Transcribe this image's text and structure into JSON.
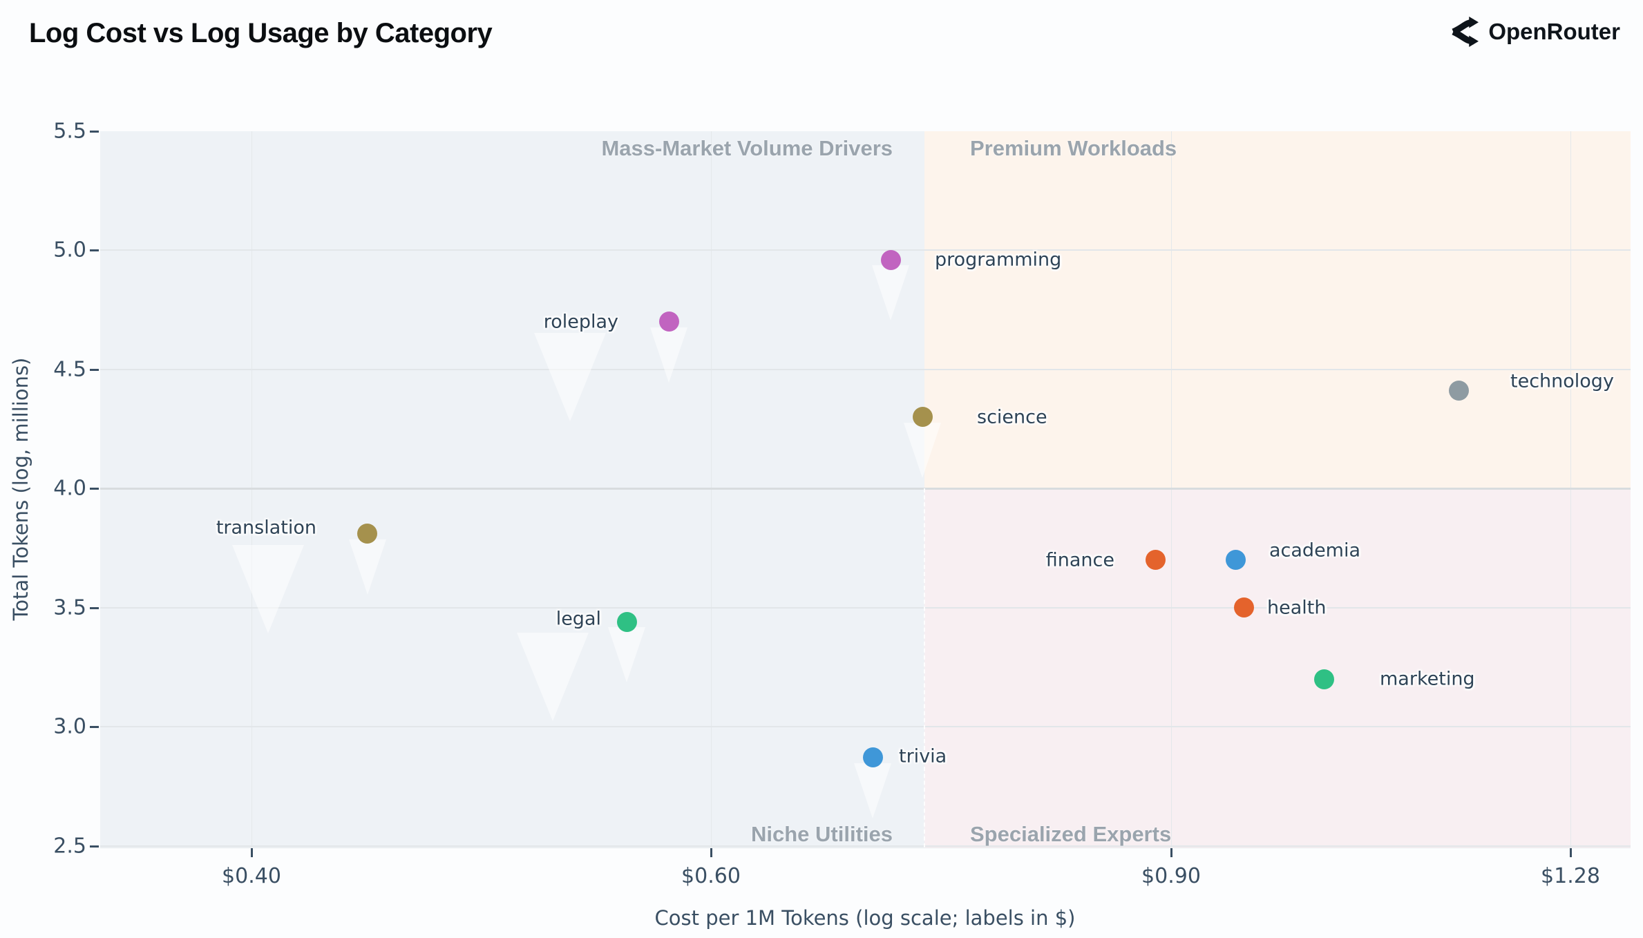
{
  "header": {
    "title": "Log Cost vs Log Usage by Category",
    "brand": "OpenRouter"
  },
  "chart_data": {
    "type": "scatter",
    "title": "Log Cost vs Log Usage by Category",
    "xlabel": "Cost per 1M Tokens (log scale; labels in $)",
    "ylabel": "Total Tokens (log, millions)",
    "x_scale": "log",
    "y_scale": "linear",
    "grid": true,
    "x_range": [
      0.35,
      1.35
    ],
    "y_range": [
      2.493,
      5.5
    ],
    "x_ticks": [
      {
        "label": "$0.40",
        "value": 0.4
      },
      {
        "label": "$0.60",
        "value": 0.6
      },
      {
        "label": "$0.90",
        "value": 0.9
      },
      {
        "label": "$1.28",
        "value": 1.28
      }
    ],
    "y_ticks": [
      {
        "label": "5.5",
        "value": 5.5
      },
      {
        "label": "5.0",
        "value": 5.0
      },
      {
        "label": "4.5",
        "value": 4.5
      },
      {
        "label": "4.0",
        "value": 4.0
      },
      {
        "label": "3.5",
        "value": 3.5
      },
      {
        "label": "3.0",
        "value": 3.0
      },
      {
        "label": "2.5",
        "value": 2.5
      }
    ],
    "quadrants": {
      "x_split": 0.724,
      "y_split": 4.0,
      "regions": [
        {
          "name": "Mass-Market Volume Drivers",
          "corner": "top-left",
          "bg": "#eef2f6"
        },
        {
          "name": "Premium Workloads",
          "corner": "top-right",
          "bg": "#fdf4ec"
        },
        {
          "name": "Niche Utilities",
          "corner": "bottom-left",
          "bg": "#eef2f6"
        },
        {
          "name": "Specialized Experts",
          "corner": "bottom-right",
          "bg": "#f8eff2"
        }
      ]
    },
    "points": [
      {
        "category": "programming",
        "cost": 0.703,
        "tokens_log": 4.96,
        "color": "#c164c0",
        "label_side": "right",
        "label_gap": 64,
        "label_dy": 0
      },
      {
        "category": "roleplay",
        "cost": 0.578,
        "tokens_log": 4.7,
        "color": "#c164c0",
        "label_side": "left",
        "label_gap": 73,
        "label_dy": 0
      },
      {
        "category": "science",
        "cost": 0.723,
        "tokens_log": 4.3,
        "color": "#a5914d",
        "label_side": "right",
        "label_gap": 79,
        "label_dy": 0
      },
      {
        "category": "technology",
        "cost": 1.16,
        "tokens_log": 4.41,
        "color": "#8e9ba2",
        "label_side": "right",
        "label_gap": 75,
        "label_dy": -14
      },
      {
        "category": "translation",
        "cost": 0.443,
        "tokens_log": 3.81,
        "color": "#a5914d",
        "label_side": "left",
        "label_gap": 74,
        "label_dy": -9
      },
      {
        "category": "finance",
        "cost": 0.888,
        "tokens_log": 3.7,
        "color": "#e4632c",
        "label_side": "left",
        "label_gap": 60,
        "label_dy": 0
      },
      {
        "category": "academia",
        "cost": 0.953,
        "tokens_log": 3.7,
        "color": "#3f97d8",
        "label_side": "right",
        "label_gap": 48,
        "label_dy": -14
      },
      {
        "category": "health",
        "cost": 0.96,
        "tokens_log": 3.5,
        "color": "#e4632c",
        "label_side": "right",
        "label_gap": 33,
        "label_dy": 0
      },
      {
        "category": "legal",
        "cost": 0.557,
        "tokens_log": 3.44,
        "color": "#2fc084",
        "label_side": "left",
        "label_gap": 37,
        "label_dy": -4
      },
      {
        "category": "marketing",
        "cost": 1.03,
        "tokens_log": 3.2,
        "color": "#2fc084",
        "label_side": "right",
        "label_gap": 81,
        "label_dy": 0
      },
      {
        "category": "trivia",
        "cost": 0.692,
        "tokens_log": 2.87,
        "color": "#3f97d8",
        "label_side": "right",
        "label_gap": 38,
        "label_dy": -2
      }
    ],
    "colors": {
      "grid_v": "#e4e8eb",
      "grid_h": "#e2e6e9",
      "quadrant_divider": "#d8dcde",
      "quadrant_label": "#9aa4ad",
      "axis_text": "#3a4f63",
      "point_label": "#2e4356"
    }
  }
}
